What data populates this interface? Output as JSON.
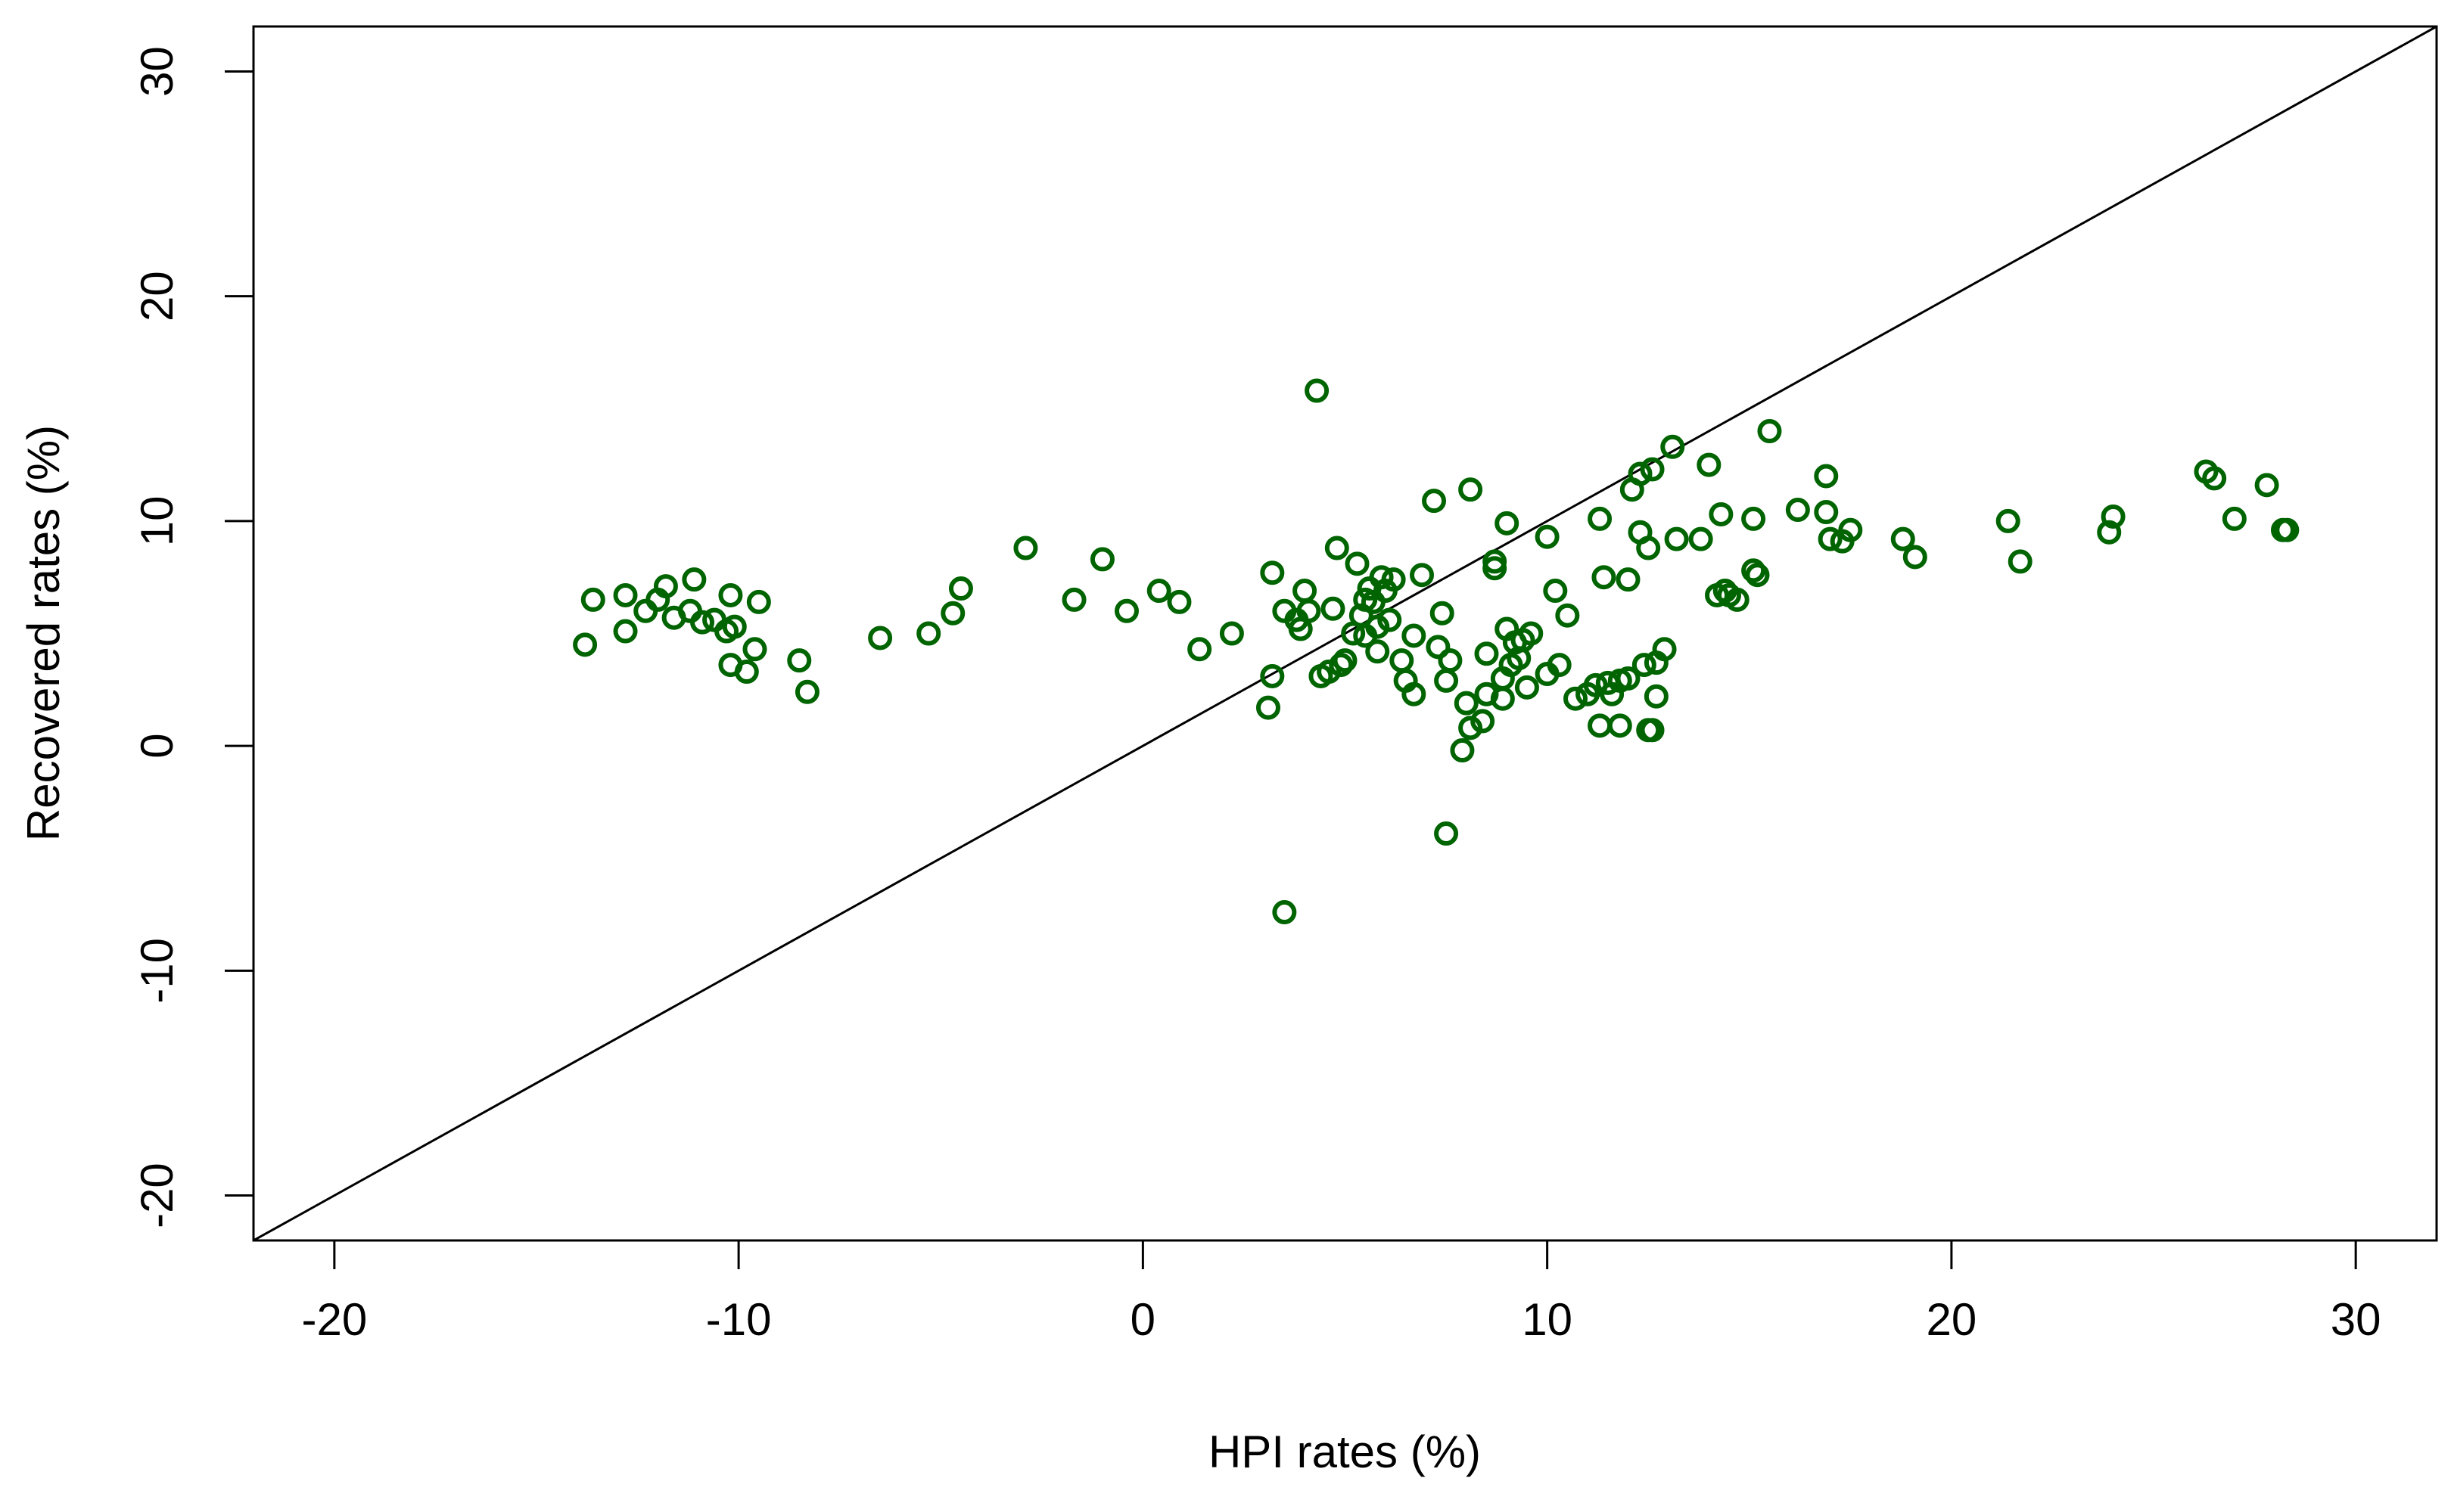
{
  "colors": {
    "points": "#006400",
    "axes": "#000000",
    "reference_line": "#000000",
    "background": "#ffffff"
  },
  "chart_data": {
    "type": "scatter",
    "title": "",
    "xlabel": "HPI rates (%)",
    "ylabel": "Recovered rates (%)",
    "xlim": [
      -22,
      32
    ],
    "ylim": [
      -22,
      32
    ],
    "x_ticks": [
      -20,
      -10,
      0,
      10,
      20,
      30
    ],
    "y_ticks": [
      -20,
      -10,
      0,
      10,
      20,
      30
    ],
    "x_tick_labels": [
      "-20",
      "-10",
      "0",
      "10",
      "20",
      "30"
    ],
    "y_tick_labels": [
      "-20",
      "-10",
      "0",
      "10",
      "20",
      "30"
    ],
    "grid": false,
    "legend": "none",
    "marker": "open-circle",
    "reference_line": {
      "type": "identity",
      "slope": 1,
      "intercept": 0
    },
    "series": [
      {
        "points": [
          [
            -13.6,
            6.5
          ],
          [
            -13.8,
            4.5
          ],
          [
            -12.8,
            6.7
          ],
          [
            -12.8,
            5.1
          ],
          [
            -12.3,
            6.0
          ],
          [
            -12.0,
            6.5
          ],
          [
            -11.8,
            7.1
          ],
          [
            -11.6,
            5.7
          ],
          [
            -11.2,
            6.0
          ],
          [
            -11.1,
            7.4
          ],
          [
            -10.9,
            5.5
          ],
          [
            -10.6,
            5.6
          ],
          [
            -10.3,
            5.1
          ],
          [
            -10.2,
            6.7
          ],
          [
            -10.1,
            5.3
          ],
          [
            -10.2,
            3.6
          ],
          [
            -9.8,
            3.3
          ],
          [
            -9.6,
            4.3
          ],
          [
            -9.5,
            6.4
          ],
          [
            -8.5,
            3.8
          ],
          [
            -8.3,
            2.4
          ],
          [
            -6.5,
            4.8
          ],
          [
            -5.3,
            5.0
          ],
          [
            -4.7,
            5.9
          ],
          [
            -4.5,
            7.0
          ],
          [
            -2.9,
            8.8
          ],
          [
            -1.7,
            6.5
          ],
          [
            -1.0,
            8.3
          ],
          [
            -0.4,
            6.0
          ],
          [
            0.4,
            6.9
          ],
          [
            0.9,
            6.4
          ],
          [
            1.4,
            4.3
          ],
          [
            2.2,
            5.0
          ],
          [
            3.2,
            7.7
          ],
          [
            3.2,
            3.1
          ],
          [
            3.1,
            1.7
          ],
          [
            3.5,
            6.0
          ],
          [
            3.5,
            -7.4
          ],
          [
            3.8,
            5.6
          ],
          [
            3.9,
            5.2
          ],
          [
            4.0,
            6.9
          ],
          [
            4.1,
            6.0
          ],
          [
            4.3,
            15.8
          ],
          [
            4.4,
            3.1
          ],
          [
            4.6,
            3.3
          ],
          [
            4.7,
            6.1
          ],
          [
            4.8,
            8.8
          ],
          [
            4.9,
            3.6
          ],
          [
            5.0,
            3.8
          ],
          [
            5.2,
            5.0
          ],
          [
            5.3,
            8.1
          ],
          [
            5.4,
            5.8
          ],
          [
            5.5,
            6.5
          ],
          [
            5.5,
            4.9
          ],
          [
            5.6,
            7.0
          ],
          [
            5.7,
            6.4
          ],
          [
            5.8,
            5.3
          ],
          [
            5.8,
            4.2
          ],
          [
            5.9,
            7.5
          ],
          [
            6.0,
            6.9
          ],
          [
            6.1,
            5.6
          ],
          [
            6.2,
            7.4
          ],
          [
            6.4,
            3.8
          ],
          [
            6.5,
            2.9
          ],
          [
            6.7,
            4.9
          ],
          [
            6.7,
            2.3
          ],
          [
            6.9,
            7.6
          ],
          [
            7.2,
            10.9
          ],
          [
            7.3,
            4.4
          ],
          [
            7.4,
            5.9
          ],
          [
            7.5,
            -3.9
          ],
          [
            7.5,
            2.9
          ],
          [
            7.6,
            3.8
          ],
          [
            7.9,
            -0.2
          ],
          [
            8.0,
            1.9
          ],
          [
            8.1,
            0.8
          ],
          [
            8.1,
            11.4
          ],
          [
            8.4,
            1.1
          ],
          [
            8.5,
            2.3
          ],
          [
            8.5,
            4.1
          ],
          [
            8.7,
            7.9
          ],
          [
            8.7,
            8.2
          ],
          [
            8.9,
            2.1
          ],
          [
            8.9,
            3.0
          ],
          [
            9.0,
            9.9
          ],
          [
            9.0,
            5.2
          ],
          [
            9.1,
            3.6
          ],
          [
            9.2,
            4.6
          ],
          [
            9.3,
            3.9
          ],
          [
            9.4,
            4.7
          ],
          [
            9.5,
            2.6
          ],
          [
            9.6,
            5.0
          ],
          [
            10.0,
            9.3
          ],
          [
            10.0,
            3.2
          ],
          [
            10.2,
            6.9
          ],
          [
            10.3,
            3.6
          ],
          [
            10.5,
            5.8
          ],
          [
            10.7,
            2.1
          ],
          [
            11.0,
            2.3
          ],
          [
            11.2,
            2.7
          ],
          [
            11.3,
            10.1
          ],
          [
            11.3,
            0.9
          ],
          [
            11.4,
            7.5
          ],
          [
            11.5,
            2.8
          ],
          [
            11.6,
            2.3
          ],
          [
            11.8,
            0.9
          ],
          [
            11.8,
            2.9
          ],
          [
            12.0,
            3.0
          ],
          [
            12.0,
            7.4
          ],
          [
            12.1,
            11.4
          ],
          [
            12.3,
            9.5
          ],
          [
            12.3,
            12.1
          ],
          [
            12.4,
            3.6
          ],
          [
            12.5,
            8.8
          ],
          [
            12.5,
            0.7
          ],
          [
            12.6,
            0.7
          ],
          [
            12.6,
            12.3
          ],
          [
            12.7,
            3.7
          ],
          [
            12.7,
            2.2
          ],
          [
            12.9,
            4.3
          ],
          [
            13.1,
            13.3
          ],
          [
            13.2,
            9.2
          ],
          [
            13.8,
            9.2
          ],
          [
            14.0,
            12.5
          ],
          [
            14.2,
            6.7
          ],
          [
            14.3,
            10.3
          ],
          [
            14.4,
            6.9
          ],
          [
            14.5,
            6.7
          ],
          [
            14.7,
            6.5
          ],
          [
            15.1,
            10.1
          ],
          [
            15.1,
            7.8
          ],
          [
            15.2,
            7.6
          ],
          [
            15.5,
            14.0
          ],
          [
            16.2,
            10.5
          ],
          [
            16.9,
            12.0
          ],
          [
            16.9,
            10.4
          ],
          [
            17.0,
            9.2
          ],
          [
            17.3,
            9.1
          ],
          [
            17.5,
            9.6
          ],
          [
            18.8,
            9.2
          ],
          [
            19.1,
            8.4
          ],
          [
            21.4,
            10.0
          ],
          [
            21.7,
            8.2
          ],
          [
            23.9,
            9.5
          ],
          [
            24.0,
            10.2
          ],
          [
            26.3,
            12.2
          ],
          [
            26.5,
            11.9
          ],
          [
            27.0,
            10.1
          ],
          [
            27.8,
            11.6
          ],
          [
            28.3,
            9.6
          ],
          [
            28.2,
            9.6
          ]
        ]
      }
    ]
  }
}
